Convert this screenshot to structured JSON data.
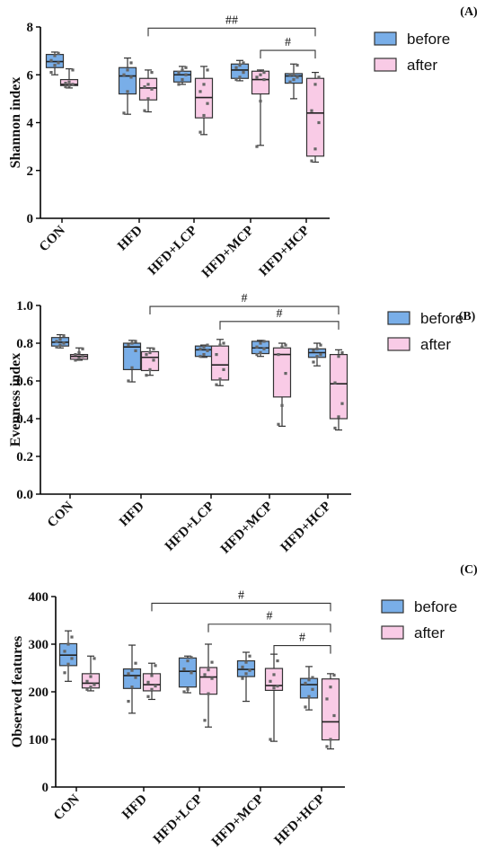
{
  "colors": {
    "before": "#79aee8",
    "after": "#f9cbe6",
    "stroke": "#333333",
    "point": "#666666"
  },
  "legend": {
    "before": "before",
    "after": "after"
  },
  "chart_data": [
    {
      "type": "box",
      "panel_label": "(A)",
      "ylabel": "Shannon index",
      "ylim": [
        0,
        8
      ],
      "yticks": [
        0,
        2,
        4,
        6,
        8
      ],
      "categories": [
        "CON",
        "HFD",
        "HFD+LCP",
        "HFD+MCP",
        "HFD+HCP"
      ],
      "series": [
        {
          "name": "before",
          "boxes": [
            {
              "min": 6.0,
              "q1": 6.3,
              "median": 6.55,
              "q3": 6.85,
              "max": 6.95,
              "points": [
                6.1,
                6.4,
                6.5,
                6.6,
                6.8,
                6.9
              ]
            },
            {
              "min": 4.35,
              "q1": 5.2,
              "median": 5.95,
              "q3": 6.3,
              "max": 6.7,
              "points": [
                4.4,
                5.3,
                5.9,
                6.0,
                6.2,
                6.5
              ]
            },
            {
              "min": 5.6,
              "q1": 5.7,
              "median": 6.0,
              "q3": 6.15,
              "max": 6.35,
              "points": [
                5.6,
                5.8,
                6.0,
                6.1,
                6.2,
                6.3
              ]
            },
            {
              "min": 5.75,
              "q1": 5.85,
              "median": 6.2,
              "q3": 6.45,
              "max": 6.6,
              "points": [
                5.8,
                5.9,
                6.1,
                6.3,
                6.4,
                6.5
              ]
            },
            {
              "min": 5.0,
              "q1": 5.65,
              "median": 5.95,
              "q3": 6.05,
              "max": 6.45,
              "points": [
                5.7,
                5.8,
                5.9,
                6.0,
                6.0,
                6.4
              ]
            }
          ]
        },
        {
          "name": "after",
          "boxes": [
            {
              "min": 5.45,
              "q1": 5.55,
              "median": 5.6,
              "q3": 5.8,
              "max": 6.25,
              "points": [
                5.5,
                5.55,
                5.6,
                5.65,
                5.7,
                6.2
              ]
            },
            {
              "min": 4.45,
              "q1": 4.95,
              "median": 5.45,
              "q3": 5.85,
              "max": 6.2,
              "points": [
                4.5,
                5.0,
                5.4,
                5.5,
                5.6,
                6.1
              ]
            },
            {
              "min": 3.5,
              "q1": 4.2,
              "median": 5.05,
              "q3": 5.85,
              "max": 6.35,
              "points": [
                3.6,
                4.3,
                4.8,
                5.3,
                5.6,
                6.2
              ]
            },
            {
              "min": 3.05,
              "q1": 5.2,
              "median": 5.8,
              "q3": 6.15,
              "max": 6.2,
              "points": [
                3.0,
                4.9,
                5.8,
                5.9,
                6.0,
                6.1
              ]
            },
            {
              "min": 2.35,
              "q1": 2.6,
              "median": 4.4,
              "q3": 5.85,
              "max": 6.1,
              "points": [
                2.4,
                2.9,
                4.0,
                4.5,
                5.6,
                5.9
              ]
            }
          ]
        }
      ],
      "significance": [
        {
          "label": "##",
          "from": 1,
          "to": 4,
          "y": 7.95
        },
        {
          "label": "#",
          "from": 3,
          "to": 4,
          "y": 7.02
        }
      ]
    },
    {
      "type": "box",
      "panel_label": "(B)",
      "ylabel": "Evenness index",
      "ylim": [
        0.0,
        1.0
      ],
      "yticks": [
        "0.0",
        "0.2",
        "0.4",
        "0.6",
        "0.8",
        "1.0"
      ],
      "categories": [
        "CON",
        "HFD",
        "HFD+LCP",
        "HFD+MCP",
        "HFD+HCP"
      ],
      "series": [
        {
          "name": "before",
          "boxes": [
            {
              "min": 0.775,
              "q1": 0.785,
              "median": 0.805,
              "q3": 0.83,
              "max": 0.845,
              "points": [
                0.78,
                0.79,
                0.8,
                0.81,
                0.82,
                0.84
              ]
            },
            {
              "min": 0.595,
              "q1": 0.66,
              "median": 0.78,
              "q3": 0.8,
              "max": 0.815,
              "points": [
                0.6,
                0.67,
                0.76,
                0.79,
                0.8,
                0.81
              ]
            },
            {
              "min": 0.725,
              "q1": 0.73,
              "median": 0.765,
              "q3": 0.785,
              "max": 0.79,
              "points": [
                0.73,
                0.74,
                0.76,
                0.77,
                0.78,
                0.79
              ]
            },
            {
              "min": 0.73,
              "q1": 0.745,
              "median": 0.775,
              "q3": 0.81,
              "max": 0.815,
              "points": [
                0.74,
                0.75,
                0.77,
                0.78,
                0.8,
                0.81
              ]
            },
            {
              "min": 0.68,
              "q1": 0.725,
              "median": 0.75,
              "q3": 0.77,
              "max": 0.8,
              "points": [
                0.7,
                0.73,
                0.74,
                0.76,
                0.77,
                0.79
              ]
            }
          ]
        },
        {
          "name": "after",
          "boxes": [
            {
              "min": 0.71,
              "q1": 0.715,
              "median": 0.73,
              "q3": 0.74,
              "max": 0.775,
              "points": [
                0.71,
                0.72,
                0.73,
                0.74,
                0.75,
                0.77
              ]
            },
            {
              "min": 0.63,
              "q1": 0.655,
              "median": 0.725,
              "q3": 0.755,
              "max": 0.775,
              "points": [
                0.63,
                0.66,
                0.71,
                0.74,
                0.75,
                0.77
              ]
            },
            {
              "min": 0.575,
              "q1": 0.605,
              "median": 0.685,
              "q3": 0.785,
              "max": 0.82,
              "points": [
                0.58,
                0.61,
                0.66,
                0.74,
                0.79,
                0.8
              ]
            },
            {
              "min": 0.36,
              "q1": 0.515,
              "median": 0.74,
              "q3": 0.775,
              "max": 0.8,
              "points": [
                0.37,
                0.47,
                0.64,
                0.74,
                0.78,
                0.79
              ]
            },
            {
              "min": 0.34,
              "q1": 0.4,
              "median": 0.585,
              "q3": 0.74,
              "max": 0.765,
              "points": [
                0.35,
                0.41,
                0.48,
                0.59,
                0.73,
                0.75
              ]
            }
          ]
        }
      ],
      "significance": [
        {
          "label": "#",
          "from": 1,
          "to": 4,
          "y": 0.995
        },
        {
          "label": "#",
          "from": 2,
          "to": 4,
          "y": 0.915
        }
      ]
    },
    {
      "type": "box",
      "panel_label": "(C)",
      "ylabel": "Observed features",
      "ylim": [
        0,
        400
      ],
      "yticks": [
        0,
        100,
        200,
        300,
        400
      ],
      "categories": [
        "CON",
        "HFD",
        "HFD+LCP",
        "HFD+MCP",
        "HFD+HCP"
      ],
      "series": [
        {
          "name": "before",
          "boxes": [
            {
              "min": 222,
              "q1": 255,
              "median": 277,
              "q3": 301,
              "max": 328,
              "points": [
                240,
                258,
                270,
                285,
                300,
                315
              ]
            },
            {
              "min": 155,
              "q1": 207,
              "median": 234,
              "q3": 248,
              "max": 298,
              "points": [
                180,
                210,
                230,
                238,
                245,
                260
              ]
            },
            {
              "min": 198,
              "q1": 210,
              "median": 243,
              "q3": 271,
              "max": 275,
              "points": [
                200,
                205,
                240,
                248,
                265,
                272
              ]
            },
            {
              "min": 180,
              "q1": 232,
              "median": 247,
              "q3": 265,
              "max": 283,
              "points": [
                228,
                238,
                245,
                252,
                262,
                275
              ]
            },
            {
              "min": 162,
              "q1": 187,
              "median": 215,
              "q3": 228,
              "max": 253,
              "points": [
                168,
                190,
                205,
                218,
                225,
                230
              ]
            }
          ]
        },
        {
          "name": "after",
          "boxes": [
            {
              "min": 202,
              "q1": 208,
              "median": 218,
              "q3": 238,
              "max": 275,
              "points": [
                205,
                210,
                215,
                222,
                232,
                270
              ]
            },
            {
              "min": 184,
              "q1": 202,
              "median": 215,
              "q3": 238,
              "max": 260,
              "points": [
                190,
                205,
                212,
                220,
                234,
                255
              ]
            },
            {
              "min": 126,
              "q1": 195,
              "median": 231,
              "q3": 251,
              "max": 300,
              "points": [
                140,
                196,
                228,
                236,
                246,
                262
              ]
            },
            {
              "min": 96,
              "q1": 203,
              "median": 213,
              "q3": 249,
              "max": 279,
              "points": [
                100,
                208,
                212,
                222,
                236,
                265
              ]
            },
            {
              "min": 80,
              "q1": 99,
              "median": 137,
              "q3": 227,
              "max": 238,
              "points": [
                85,
                100,
                150,
                185,
                210,
                235
              ]
            }
          ]
        }
      ],
      "significance": [
        {
          "label": "#",
          "from": 1,
          "to": 4,
          "y": 386
        },
        {
          "label": "#",
          "from": 2,
          "to": 4,
          "y": 342
        },
        {
          "label": "#",
          "from": 3,
          "to": 4,
          "y": 297
        }
      ]
    }
  ]
}
